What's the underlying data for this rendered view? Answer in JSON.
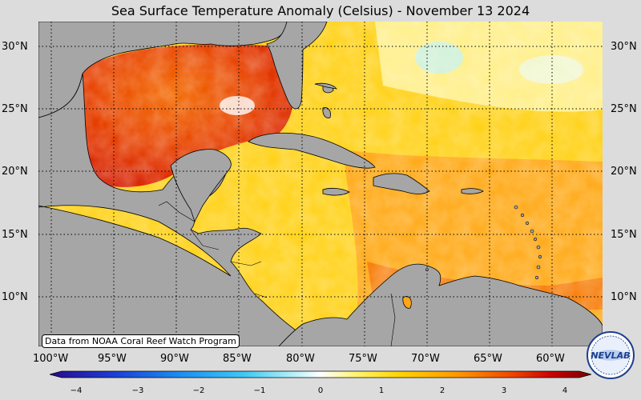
{
  "title": "Sea Surface Temperature Anomaly (Celsius) - November 13 2024",
  "credit": "Data from NOAA Coral Reef Watch Program",
  "lat_labels": [
    "30°N",
    "25°N",
    "20°N",
    "15°N",
    "10°N"
  ],
  "lon_labels": [
    "100°W",
    "95°W",
    "90°W",
    "85°W",
    "80°W",
    "75°W",
    "70°W",
    "65°W",
    "60°W"
  ],
  "colorbar": {
    "ticks": [
      "−4",
      "−3",
      "−2",
      "−1",
      "0",
      "1",
      "2",
      "3",
      "4"
    ],
    "colors": [
      "#2a0a8c",
      "#1b3fd6",
      "#1c8ef0",
      "#40c8f5",
      "#a8ecf8",
      "#ffffff",
      "#fff36a",
      "#ffd200",
      "#ff9a00",
      "#f04a00",
      "#c80000",
      "#7a0000"
    ]
  },
  "logo_text": "NEVLAB",
  "colors": {
    "land": "#a6a6a6",
    "background": "#dcdcdc"
  }
}
